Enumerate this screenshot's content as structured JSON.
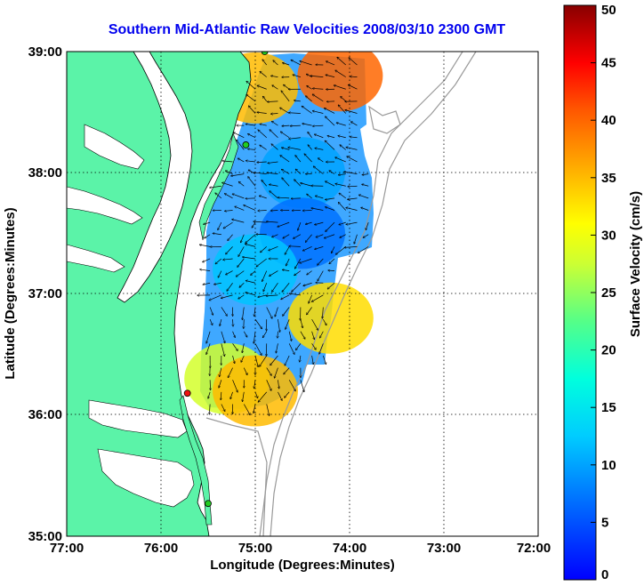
{
  "title": "Southern Mid-Atlantic Raw Velocities 2008/03/10 2300 GMT",
  "xlabel": "Longitude (Degrees:Minutes)",
  "ylabel": "Latitude (Degrees:Minutes)",
  "colorbar_label": "Surface Velocity (cm/s)",
  "x_ticks": [
    "77:00",
    "76:00",
    "75:00",
    "74:00",
    "73:00",
    "72:00"
  ],
  "y_ticks": [
    "39:00",
    "38:00",
    "37:00",
    "36:00",
    "35:00"
  ],
  "colorbar_ticks": [
    "0",
    "5",
    "10",
    "15",
    "20",
    "25",
    "30",
    "35",
    "40",
    "45",
    "50"
  ],
  "colors": {
    "title": "#0000ee",
    "land": "#5bf3a8",
    "water": "#ffffff",
    "bathymetry": "#999999",
    "station_green": "#22cc22",
    "station_red": "#ee1111"
  },
  "chart_data": {
    "type": "heatmap",
    "title": "Southern Mid-Atlantic Raw Velocities 2008/03/10 2300 GMT",
    "xlabel": "Longitude (Degrees:Minutes)",
    "ylabel": "Latitude (Degrees:Minutes)",
    "xlim": [
      -77,
      -72
    ],
    "ylim": [
      35,
      39
    ],
    "colorbar": {
      "label": "Surface Velocity (cm/s)",
      "range": [
        0,
        50
      ],
      "colormap": "jet"
    },
    "grid": true,
    "stations": [
      {
        "lon": -74.9,
        "lat": 39.0,
        "color": "green"
      },
      {
        "lon": -75.1,
        "lat": 38.23,
        "color": "green"
      },
      {
        "lon": -75.72,
        "lat": 36.18,
        "color": "red"
      },
      {
        "lon": -75.5,
        "lat": 35.27,
        "color": "green"
      }
    ],
    "velocity_field": {
      "lon_range": [
        -75.6,
        -73.7
      ],
      "lat_range": [
        36.05,
        39.0
      ],
      "regions": [
        {
          "lon": -74.1,
          "lat": 38.8,
          "speed": 40
        },
        {
          "lon": -75.0,
          "lat": 38.7,
          "speed": 35
        },
        {
          "lon": -74.5,
          "lat": 38.0,
          "speed": 10
        },
        {
          "lon": -74.5,
          "lat": 37.5,
          "speed": 7
        },
        {
          "lon": -75.0,
          "lat": 37.2,
          "speed": 12
        },
        {
          "lon": -74.2,
          "lat": 36.8,
          "speed": 33
        },
        {
          "lon": -75.3,
          "lat": 36.3,
          "speed": 28
        },
        {
          "lon": -75.0,
          "lat": 36.2,
          "speed": 35
        }
      ]
    }
  }
}
